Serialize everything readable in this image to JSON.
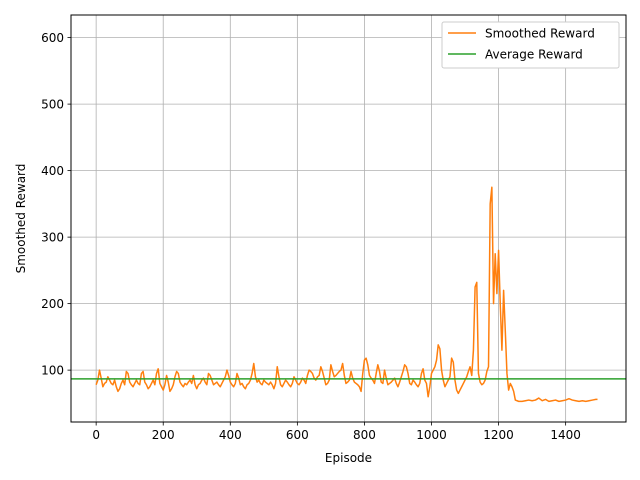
{
  "chart_data": {
    "type": "line",
    "title": "",
    "xlabel": "Episode",
    "ylabel": "Smoothed Reward",
    "xlim": [
      -75,
      1580
    ],
    "ylim": [
      22,
      634
    ],
    "xticks": [
      0,
      200,
      400,
      600,
      800,
      1000,
      1200,
      1400
    ],
    "yticks": [
      100,
      200,
      300,
      400,
      500,
      600
    ],
    "xtick_labels": [
      "0",
      "200",
      "400",
      "600",
      "800",
      "1000",
      "1200",
      "1400"
    ],
    "ytick_labels": [
      "100",
      "200",
      "300",
      "400",
      "500",
      "600"
    ],
    "grid": true,
    "legend_position": "top-right",
    "series": [
      {
        "name": "Smoothed Reward",
        "color": "#ff7f0e",
        "x": [
          0,
          5,
          10,
          15,
          20,
          25,
          30,
          35,
          40,
          45,
          50,
          55,
          60,
          65,
          70,
          75,
          80,
          85,
          90,
          95,
          100,
          105,
          110,
          115,
          120,
          125,
          130,
          135,
          140,
          145,
          150,
          155,
          160,
          165,
          170,
          175,
          180,
          185,
          190,
          195,
          200,
          205,
          210,
          215,
          220,
          225,
          230,
          235,
          240,
          245,
          250,
          255,
          260,
          265,
          270,
          275,
          280,
          285,
          290,
          295,
          300,
          305,
          310,
          315,
          320,
          325,
          330,
          335,
          340,
          345,
          350,
          355,
          360,
          365,
          370,
          375,
          380,
          385,
          390,
          395,
          400,
          405,
          410,
          415,
          420,
          425,
          430,
          435,
          440,
          445,
          450,
          455,
          460,
          465,
          470,
          475,
          480,
          485,
          490,
          495,
          500,
          505,
          510,
          515,
          520,
          525,
          530,
          535,
          540,
          545,
          550,
          555,
          560,
          565,
          570,
          575,
          580,
          585,
          590,
          595,
          600,
          605,
          610,
          615,
          620,
          625,
          630,
          635,
          640,
          645,
          650,
          655,
          660,
          665,
          670,
          675,
          680,
          685,
          690,
          695,
          700,
          705,
          710,
          715,
          720,
          725,
          730,
          735,
          740,
          745,
          750,
          755,
          760,
          765,
          770,
          775,
          780,
          785,
          790,
          795,
          800,
          805,
          810,
          815,
          820,
          825,
          830,
          835,
          840,
          845,
          850,
          855,
          860,
          865,
          870,
          875,
          880,
          885,
          890,
          895,
          900,
          905,
          910,
          915,
          920,
          925,
          930,
          935,
          940,
          945,
          950,
          955,
          960,
          965,
          970,
          975,
          980,
          985,
          990,
          995,
          1000,
          1005,
          1010,
          1015,
          1020,
          1025,
          1030,
          1035,
          1040,
          1045,
          1050,
          1055,
          1060,
          1065,
          1070,
          1075,
          1080,
          1085,
          1090,
          1095,
          1100,
          1105,
          1110,
          1115,
          1120,
          1125,
          1130,
          1135,
          1140,
          1145,
          1150,
          1155,
          1160,
          1165,
          1170,
          1175,
          1180,
          1185,
          1190,
          1195,
          1200,
          1205,
          1210,
          1215,
          1220,
          1225,
          1230,
          1235,
          1240,
          1245,
          1250,
          1260,
          1270,
          1280,
          1290,
          1300,
          1310,
          1320,
          1330,
          1340,
          1350,
          1360,
          1370,
          1380,
          1390,
          1400,
          1410,
          1420,
          1430,
          1440,
          1450,
          1460,
          1470,
          1480,
          1490,
          1495
        ],
        "y": [
          78,
          85,
          100,
          88,
          75,
          80,
          82,
          90,
          85,
          80,
          78,
          85,
          75,
          68,
          72,
          80,
          85,
          78,
          98,
          95,
          82,
          78,
          75,
          80,
          85,
          80,
          78,
          95,
          98,
          82,
          78,
          72,
          75,
          80,
          85,
          78,
          95,
          102,
          80,
          75,
          70,
          78,
          92,
          82,
          68,
          72,
          78,
          90,
          98,
          95,
          82,
          78,
          75,
          80,
          78,
          82,
          85,
          80,
          92,
          78,
          72,
          78,
          80,
          85,
          88,
          82,
          78,
          95,
          92,
          85,
          78,
          80,
          82,
          78,
          75,
          80,
          85,
          90,
          100,
          92,
          82,
          78,
          75,
          80,
          95,
          88,
          78,
          80,
          75,
          72,
          78,
          80,
          85,
          95,
          110,
          90,
          82,
          85,
          80,
          78,
          85,
          82,
          80,
          78,
          82,
          78,
          72,
          80,
          105,
          90,
          78,
          75,
          80,
          85,
          82,
          78,
          75,
          80,
          90,
          85,
          80,
          78,
          82,
          88,
          85,
          80,
          92,
          100,
          98,
          95,
          88,
          85,
          90,
          92,
          105,
          98,
          88,
          78,
          80,
          85,
          108,
          98,
          90,
          92,
          95,
          98,
          100,
          110,
          92,
          80,
          82,
          85,
          98,
          88,
          82,
          80,
          78,
          75,
          68,
          95,
          115,
          118,
          108,
          92,
          88,
          85,
          80,
          95,
          108,
          98,
          82,
          80,
          100,
          88,
          78,
          80,
          82,
          85,
          88,
          80,
          75,
          82,
          90,
          98,
          108,
          105,
          95,
          80,
          78,
          85,
          82,
          78,
          75,
          80,
          95,
          102,
          85,
          80,
          60,
          75,
          95,
          100,
          105,
          115,
          138,
          132,
          100,
          85,
          75,
          80,
          85,
          90,
          118,
          112,
          85,
          70,
          65,
          70,
          75,
          80,
          85,
          90,
          98,
          105,
          92,
          130,
          225,
          232,
          95,
          82,
          78,
          80,
          85,
          98,
          105,
          350,
          375,
          200,
          275,
          215,
          280,
          200,
          130,
          220,
          160,
          95,
          70,
          80,
          75,
          68,
          55,
          53,
          53,
          54,
          55,
          54,
          55,
          58,
          54,
          56,
          53,
          54,
          55,
          53,
          54,
          55,
          57,
          55,
          54,
          53,
          54,
          53,
          54,
          55,
          56,
          56
        ]
      },
      {
        "name": "Average Reward",
        "color": "#2ca02c",
        "y_constant": 86.8
      }
    ]
  }
}
